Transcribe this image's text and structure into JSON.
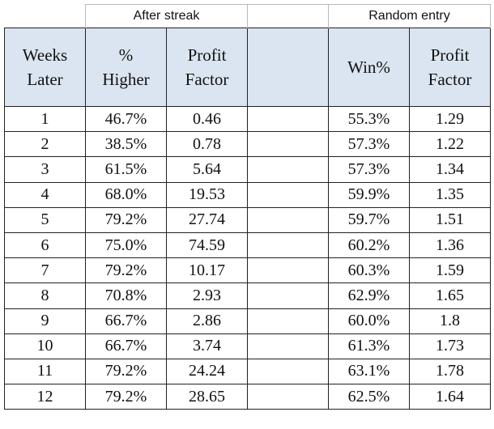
{
  "groups": {
    "after_streak": "After streak",
    "random_entry": "Random entry"
  },
  "headers": {
    "weeks": "Weeks\nLater",
    "pct_higher": "%\nHigher",
    "profit_factor_a": "Profit\nFactor",
    "win_pct": "Win%",
    "profit_factor_b": "Profit\nFactor"
  },
  "chart_data": {
    "type": "table",
    "columns": [
      "Weeks Later",
      "% Higher",
      "Profit Factor",
      "Win%",
      "Profit Factor"
    ],
    "rows": [
      [
        "1",
        "46.7%",
        "0.46",
        "55.3%",
        "1.29"
      ],
      [
        "2",
        "38.5%",
        "0.78",
        "57.3%",
        "1.22"
      ],
      [
        "3",
        "61.5%",
        "5.64",
        "57.3%",
        "1.34"
      ],
      [
        "4",
        "68.0%",
        "19.53",
        "59.9%",
        "1.35"
      ],
      [
        "5",
        "79.2%",
        "27.74",
        "59.7%",
        "1.51"
      ],
      [
        "6",
        "75.0%",
        "74.59",
        "60.2%",
        "1.36"
      ],
      [
        "7",
        "79.2%",
        "10.17",
        "60.3%",
        "1.59"
      ],
      [
        "8",
        "70.8%",
        "2.93",
        "62.9%",
        "1.65"
      ],
      [
        "9",
        "66.7%",
        "2.86",
        "60.0%",
        "1.8"
      ],
      [
        "10",
        "66.7%",
        "3.74",
        "61.3%",
        "1.73"
      ],
      [
        "11",
        "79.2%",
        "24.24",
        "63.1%",
        "1.78"
      ],
      [
        "12",
        "79.2%",
        "28.65",
        "62.5%",
        "1.64"
      ]
    ]
  }
}
